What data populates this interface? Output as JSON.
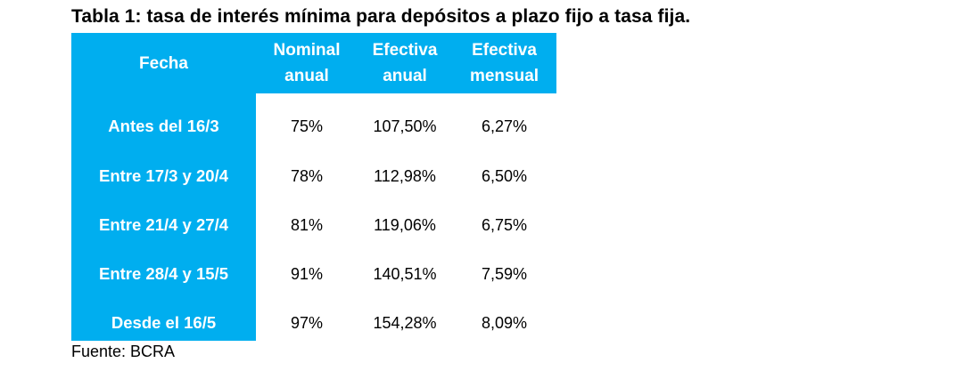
{
  "title": "Tabla 1: tasa de interés mínima para depósitos a plazo fijo a tasa fija.",
  "table": {
    "headers": [
      "Fecha",
      "Nominal\nanual",
      "Efectiva\nanual",
      "Efectiva\nmensual"
    ],
    "rows": [
      {
        "fecha": "Antes del 16/3",
        "nominal_anual": "75%",
        "efectiva_anual": "107,50%",
        "efectiva_mensual": "6,27%"
      },
      {
        "fecha": "Entre 17/3 y 20/4",
        "nominal_anual": "78%",
        "efectiva_anual": "112,98%",
        "efectiva_mensual": "6,50%"
      },
      {
        "fecha": "Entre 21/4 y 27/4",
        "nominal_anual": "81%",
        "efectiva_anual": "119,06%",
        "efectiva_mensual": "6,75%"
      },
      {
        "fecha": "Entre 28/4 y 15/5",
        "nominal_anual": "91%",
        "efectiva_anual": "140,51%",
        "efectiva_mensual": "7,59%"
      },
      {
        "fecha": "Desde el 16/5",
        "nominal_anual": "97%",
        "efectiva_anual": "154,28%",
        "efectiva_mensual": "8,09%"
      }
    ]
  },
  "source": "Fuente: BCRA",
  "colors": {
    "accent": "#00aeef",
    "header_text": "#ffffff",
    "body_text": "#000000"
  }
}
